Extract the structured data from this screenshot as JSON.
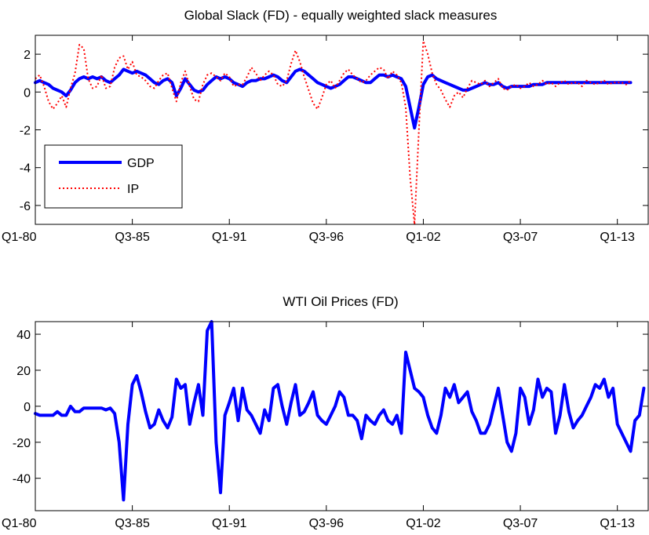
{
  "chart_data": [
    {
      "type": "line",
      "title": "Global Slack (FD) - equally weighted slack measures",
      "x_tick_labels": [
        "Q1-80",
        "Q3-85",
        "Q1-91",
        "Q3-96",
        "Q1-02",
        "Q3-07",
        "Q1-13"
      ],
      "x_range": [
        "Q1-80",
        "Q4-14"
      ],
      "ylim": [
        -7,
        3
      ],
      "y_ticks": [
        2,
        0,
        -2,
        -4,
        -6
      ],
      "y_tick_labels": [
        "2",
        "0",
        "-2",
        "-4",
        "-6"
      ],
      "legend_position": "lower-left",
      "grid": false,
      "series": [
        {
          "name": "GDP",
          "style": "solid-thick",
          "color": "#0000ff",
          "values": [
            0.5,
            0.6,
            0.5,
            0.4,
            0.2,
            0.1,
            0.0,
            -0.2,
            0.1,
            0.5,
            0.7,
            0.8,
            0.7,
            0.8,
            0.7,
            0.8,
            0.6,
            0.5,
            0.7,
            0.9,
            1.2,
            1.1,
            1.0,
            1.1,
            1.0,
            0.9,
            0.7,
            0.5,
            0.4,
            0.6,
            0.7,
            0.5,
            -0.2,
            0.2,
            0.7,
            0.4,
            0.1,
            0.0,
            0.1,
            0.4,
            0.6,
            0.8,
            0.7,
            0.8,
            0.7,
            0.5,
            0.4,
            0.3,
            0.5,
            0.6,
            0.6,
            0.7,
            0.7,
            0.8,
            0.9,
            0.8,
            0.6,
            0.5,
            0.8,
            1.1,
            1.2,
            1.1,
            0.9,
            0.7,
            0.5,
            0.4,
            0.3,
            0.2,
            0.3,
            0.4,
            0.6,
            0.8,
            0.8,
            0.7,
            0.6,
            0.5,
            0.5,
            0.7,
            0.9,
            0.9,
            0.8,
            0.9,
            0.8,
            0.7,
            0.3,
            -0.8,
            -1.9,
            -0.8,
            0.4,
            0.8,
            0.9,
            0.7,
            0.6,
            0.5,
            0.4,
            0.3,
            0.2,
            0.1,
            0.1,
            0.2,
            0.3,
            0.4,
            0.5,
            0.4,
            0.4,
            0.5,
            0.3,
            0.2,
            0.3,
            0.3,
            0.3,
            0.3,
            0.3,
            0.4,
            0.4,
            0.4,
            0.5,
            0.5,
            0.5,
            0.5,
            0.5,
            0.5,
            0.5,
            0.5,
            0.5,
            0.5,
            0.5,
            0.5,
            0.5,
            0.5,
            0.5,
            0.5,
            0.5,
            0.5,
            0.5,
            0.5
          ]
        },
        {
          "name": "IP",
          "style": "dotted",
          "color": "#ff0000",
          "values": [
            0.7,
            0.9,
            0.3,
            -0.5,
            -0.9,
            -0.6,
            -0.2,
            -0.8,
            0.2,
            1.0,
            2.5,
            2.3,
            0.7,
            0.2,
            0.3,
            0.9,
            0.2,
            0.3,
            1.3,
            1.8,
            1.9,
            1.2,
            1.6,
            0.9,
            0.8,
            0.6,
            0.3,
            0.2,
            0.6,
            0.9,
            1.0,
            0.2,
            -0.5,
            0.5,
            1.1,
            0.3,
            -0.4,
            -0.5,
            0.4,
            0.9,
            1.0,
            0.8,
            0.6,
            1.0,
            0.8,
            0.3,
            0.4,
            0.4,
            0.8,
            1.3,
            1.0,
            0.6,
            0.9,
            1.1,
            0.9,
            0.4,
            0.3,
            0.6,
            1.5,
            2.2,
            1.6,
            0.8,
            0.1,
            -0.6,
            -0.9,
            -0.3,
            0.4,
            0.6,
            0.2,
            0.6,
            1.0,
            1.2,
            0.9,
            0.7,
            0.5,
            0.6,
            0.9,
            1.1,
            1.3,
            1.2,
            0.7,
            1.1,
            0.9,
            0.5,
            -0.8,
            -4.5,
            -7.0,
            -2.0,
            2.7,
            2.0,
            1.0,
            0.4,
            0.1,
            -0.4,
            -0.8,
            -0.2,
            0.0,
            -0.3,
            0.2,
            0.6,
            0.5,
            0.4,
            0.6,
            0.3,
            0.5,
            0.7,
            0.2,
            0.1,
            0.3,
            0.4,
            0.2,
            0.3,
            0.5,
            0.3,
            0.4,
            0.6,
            0.4,
            0.5,
            0.3,
            0.5,
            0.6,
            0.4,
            0.5,
            0.5,
            0.3,
            0.6,
            0.5,
            0.4,
            0.5,
            0.6,
            0.4,
            0.5,
            0.5,
            0.5,
            0.4,
            0.6
          ]
        }
      ]
    },
    {
      "type": "line",
      "title": "WTI Oil Prices (FD)",
      "x_tick_labels": [
        "Q1-80",
        "Q3-85",
        "Q1-91",
        "Q3-96",
        "Q1-02",
        "Q3-07",
        "Q1-13"
      ],
      "x_range": [
        "Q1-80",
        "Q4-14"
      ],
      "ylim": [
        -58,
        47
      ],
      "y_ticks": [
        40,
        20,
        0,
        -20,
        -40
      ],
      "y_tick_labels": [
        "40",
        "20",
        "0",
        "-20",
        "-40"
      ],
      "grid": false,
      "series": [
        {
          "style": "solid-thick",
          "color": "#0000ff",
          "values": [
            -4,
            -5,
            -5,
            -5,
            -5,
            -3,
            -5,
            -5,
            0,
            -3,
            -3,
            -1,
            -1,
            -1,
            -1,
            -1,
            -2,
            -1,
            -4,
            -20,
            -52,
            -10,
            12,
            17,
            8,
            -3,
            -12,
            -10,
            -2,
            -8,
            -12,
            -6,
            15,
            10,
            12,
            -10,
            2,
            12,
            -5,
            42,
            47,
            -20,
            -48,
            -5,
            2,
            10,
            -8,
            10,
            -2,
            -5,
            -10,
            -15,
            -2,
            -8,
            10,
            12,
            0,
            -10,
            2,
            12,
            -5,
            -3,
            2,
            8,
            -5,
            -8,
            -10,
            -5,
            0,
            8,
            5,
            -5,
            -5,
            -8,
            -18,
            -5,
            -8,
            -10,
            -5,
            -2,
            -8,
            -10,
            -5,
            -15,
            30,
            20,
            10,
            8,
            5,
            -5,
            -12,
            -15,
            -5,
            10,
            5,
            12,
            2,
            5,
            8,
            -3,
            -8,
            -15,
            -15,
            -10,
            0,
            10,
            -5,
            -20,
            -25,
            -15,
            10,
            5,
            -10,
            -2,
            15,
            5,
            10,
            8,
            -15,
            -5,
            12,
            -3,
            -12,
            -8,
            -5,
            0,
            5,
            12,
            10,
            15,
            5,
            10,
            -10,
            -15,
            -20,
            -25,
            -8,
            -5,
            10
          ]
        }
      ]
    }
  ]
}
